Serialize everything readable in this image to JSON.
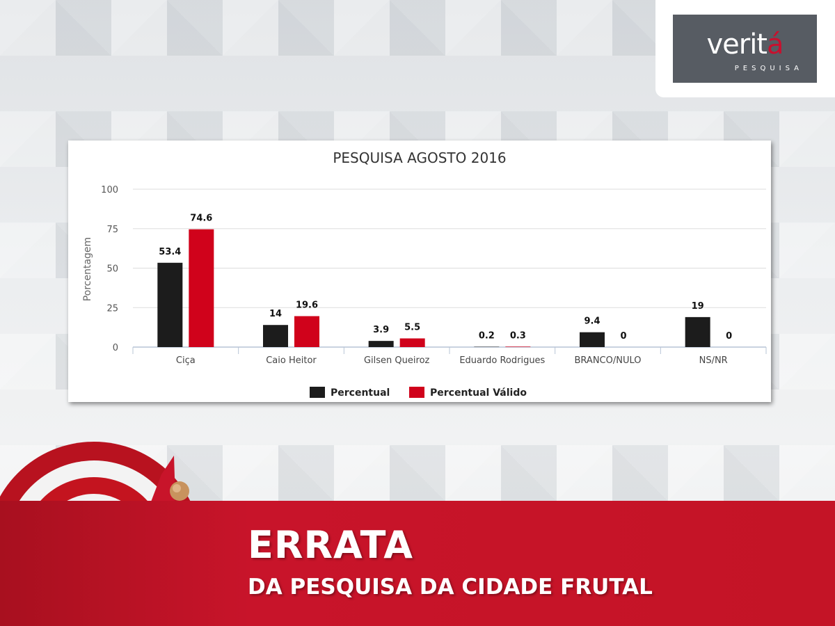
{
  "logo": {
    "name_main": "verit",
    "name_accent": "á",
    "tagline": "PESQUISA"
  },
  "banner": {
    "title": "ERRATA",
    "subtitle": "DA PESQUISA DA CIDADE FRUTAL"
  },
  "colors": {
    "series_1": "#1c1c1c",
    "series_2": "#d0021b",
    "banner": "#c8142a"
  },
  "chart_data": {
    "type": "bar",
    "title": "PESQUISA AGOSTO 2016",
    "ylabel": "Porcentagem",
    "xlabel": "",
    "ylim": [
      0,
      100
    ],
    "yticks": [
      0,
      25,
      50,
      75,
      100
    ],
    "categories": [
      "Ciça",
      "Caio Heitor",
      "Gilsen Queiroz",
      "Eduardo Rodrigues",
      "BRANCO/NULO",
      "NS/NR"
    ],
    "series": [
      {
        "name": "Percentual",
        "values": [
          53.4,
          14,
          3.9,
          0.2,
          9.4,
          19
        ]
      },
      {
        "name": "Percentual Válido",
        "values": [
          74.6,
          19.6,
          5.5,
          0.3,
          0,
          0
        ]
      }
    ],
    "legend": "bottom",
    "grid": true
  }
}
